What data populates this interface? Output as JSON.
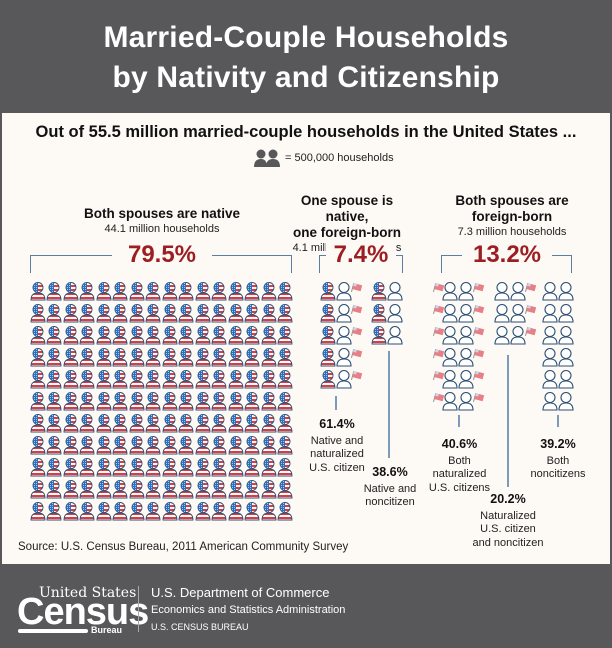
{
  "header": {
    "title_line1": "Married-Couple Households",
    "title_line2": "by Nativity and Citizenship"
  },
  "subtitle": "Out of 55.5 million married-couple households in the United States ...",
  "legend": {
    "icon": "couple-icon",
    "text": "= 500,000 households"
  },
  "groups": [
    {
      "title": "Both spouses are native",
      "subtitle": "44.1 million households",
      "percent": "79.5%"
    },
    {
      "title_line1": "One spouse is native,",
      "title_line2": "one foreign-born",
      "subtitle": "4.1 million households",
      "percent": "7.4%"
    },
    {
      "title_line1": "Both spouses are",
      "title_line2": "foreign-born",
      "subtitle": "7.3 million households",
      "percent": "13.2%"
    }
  ],
  "breakdowns": [
    {
      "percent": "61.4%",
      "label": [
        "Native and",
        "naturalized",
        "U.S. citizen"
      ]
    },
    {
      "percent": "38.6%",
      "label": [
        "Native and",
        "noncitizen"
      ]
    },
    {
      "percent": "40.6%",
      "label": [
        "Both",
        "naturalized",
        "U.S. citizens"
      ]
    },
    {
      "percent": "20.2%",
      "label": [
        "Naturalized",
        "U.S. citizen",
        "and noncitizen"
      ]
    },
    {
      "percent": "39.2%",
      "label": [
        "Both",
        "noncitizens"
      ]
    }
  ],
  "source": "Source: U.S. Census Bureau, 2011 American Community Survey",
  "footer": {
    "logo_top": "United States",
    "logo_main": "Census",
    "logo_bottom": "Bureau",
    "line1": "U.S. Department of Commerce",
    "line2": "Economics and Statistics Administration",
    "line3": "U.S. CENSUS BUREAU"
  },
  "colors": {
    "header_bg": "#58585a",
    "panel_bg": "#fdf9f4",
    "accent_red": "#9c1e23",
    "line_blue": "#5a7f9f"
  },
  "chart_data": {
    "type": "table",
    "title": "Married-Couple Households by Nativity and Citizenship",
    "unit": "1 icon = 500,000 households",
    "total_millions": 55.5,
    "categories": [
      "Both spouses are native",
      "One spouse is native, one foreign-born",
      "Both spouses are foreign-born"
    ],
    "households_millions": [
      44.1,
      4.1,
      7.3
    ],
    "percent": [
      79.5,
      7.4,
      13.2
    ],
    "icon_counts": [
      88,
      8,
      15
    ],
    "sub_breakdowns": {
      "One spouse is native, one foreign-born": {
        "Native and naturalized U.S. citizen": 61.4,
        "Native and noncitizen": 38.6
      },
      "Both spouses are foreign-born": {
        "Both naturalized U.S. citizens": 40.6,
        "Naturalized U.S. citizen and noncitizen": 20.2,
        "Both noncitizens": 39.2
      }
    }
  }
}
